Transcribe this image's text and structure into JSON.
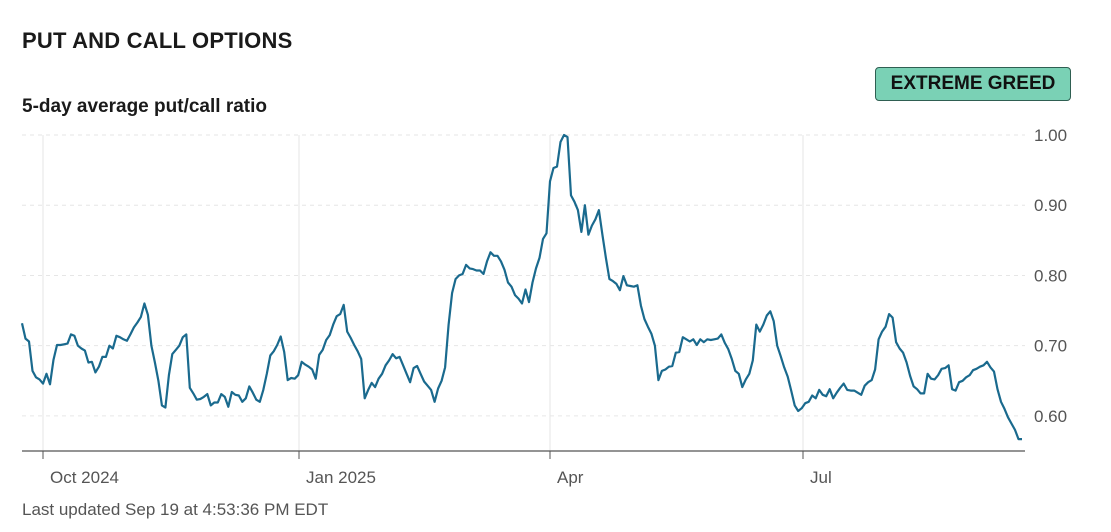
{
  "header": {
    "title": "PUT AND CALL OPTIONS",
    "subtitle": "5-day average put/call ratio",
    "badge": "EXTREME GREED",
    "updated": "Last updated Sep 19 at 4:53:36 PM EDT"
  },
  "colors": {
    "line": "#1a6a8e",
    "badge_bg": "#7ad1b5",
    "grid": "#e6e6e6"
  },
  "chart_data": {
    "type": "line",
    "title": "5-day average put/call ratio",
    "ylim": [
      0.55,
      1.0
    ],
    "y_ticks": [
      "1.00",
      "0.90",
      "0.80",
      "0.70",
      "0.60"
    ],
    "x_ticks": [
      "Oct 2024",
      "Jan 2025",
      "Apr",
      "Jul"
    ],
    "grid": true,
    "series": [
      {
        "values": [
          0.732,
          0.71,
          0.706,
          0.664,
          0.655,
          0.652,
          0.646,
          0.66,
          0.645,
          0.68,
          0.701,
          0.701,
          0.702,
          0.703,
          0.716,
          0.714,
          0.7,
          0.696,
          0.693,
          0.676,
          0.677,
          0.662,
          0.67,
          0.684,
          0.684,
          0.7,
          0.696,
          0.714,
          0.712,
          0.709,
          0.707,
          0.716,
          0.726,
          0.733,
          0.741,
          0.76,
          0.744,
          0.7,
          0.676,
          0.65,
          0.615,
          0.612,
          0.658,
          0.688,
          0.694,
          0.7,
          0.712,
          0.716,
          0.64,
          0.632,
          0.623,
          0.624,
          0.627,
          0.631,
          0.615,
          0.619,
          0.619,
          0.631,
          0.627,
          0.613,
          0.634,
          0.63,
          0.629,
          0.62,
          0.625,
          0.642,
          0.633,
          0.623,
          0.62,
          0.637,
          0.66,
          0.686,
          0.692,
          0.701,
          0.713,
          0.691,
          0.651,
          0.654,
          0.653,
          0.658,
          0.677,
          0.673,
          0.67,
          0.666,
          0.653,
          0.687,
          0.694,
          0.708,
          0.715,
          0.73,
          0.742,
          0.745,
          0.758,
          0.72,
          0.711,
          0.701,
          0.692,
          0.681,
          0.625,
          0.637,
          0.647,
          0.641,
          0.653,
          0.66,
          0.672,
          0.679,
          0.688,
          0.682,
          0.684,
          0.672,
          0.66,
          0.648,
          0.668,
          0.671,
          0.66,
          0.649,
          0.643,
          0.637,
          0.62,
          0.639,
          0.65,
          0.669,
          0.73,
          0.775,
          0.795,
          0.8,
          0.802,
          0.815,
          0.81,
          0.809,
          0.807,
          0.807,
          0.802,
          0.82,
          0.833,
          0.828,
          0.828,
          0.82,
          0.808,
          0.79,
          0.784,
          0.772,
          0.767,
          0.76,
          0.78,
          0.762,
          0.79,
          0.81,
          0.825,
          0.852,
          0.86,
          0.934,
          0.953,
          0.955,
          0.99,
          1.0,
          0.997,
          0.914,
          0.905,
          0.893,
          0.862,
          0.9,
          0.858,
          0.871,
          0.88,
          0.893,
          0.858,
          0.825,
          0.795,
          0.792,
          0.788,
          0.779,
          0.799,
          0.786,
          0.785,
          0.784,
          0.786,
          0.757,
          0.738,
          0.727,
          0.717,
          0.7,
          0.651,
          0.664,
          0.666,
          0.67,
          0.671,
          0.69,
          0.691,
          0.712,
          0.709,
          0.706,
          0.709,
          0.701,
          0.709,
          0.705,
          0.709,
          0.708,
          0.709,
          0.71,
          0.716,
          0.704,
          0.695,
          0.681,
          0.664,
          0.66,
          0.641,
          0.652,
          0.66,
          0.679,
          0.73,
          0.72,
          0.73,
          0.743,
          0.749,
          0.735,
          0.7,
          0.685,
          0.669,
          0.656,
          0.636,
          0.615,
          0.607,
          0.611,
          0.618,
          0.62,
          0.629,
          0.625,
          0.637,
          0.63,
          0.628,
          0.638,
          0.625,
          0.633,
          0.64,
          0.646,
          0.637,
          0.636,
          0.636,
          0.633,
          0.63,
          0.643,
          0.648,
          0.651,
          0.666,
          0.709,
          0.72,
          0.727,
          0.745,
          0.74,
          0.705,
          0.696,
          0.69,
          0.676,
          0.657,
          0.642,
          0.638,
          0.632,
          0.632,
          0.66,
          0.653,
          0.652,
          0.658,
          0.667,
          0.668,
          0.672,
          0.638,
          0.636,
          0.648,
          0.65,
          0.655,
          0.658,
          0.665,
          0.667,
          0.67,
          0.672,
          0.677,
          0.669,
          0.663,
          0.638,
          0.62,
          0.61,
          0.598,
          0.589,
          0.58,
          0.567,
          0.567
        ]
      }
    ]
  }
}
